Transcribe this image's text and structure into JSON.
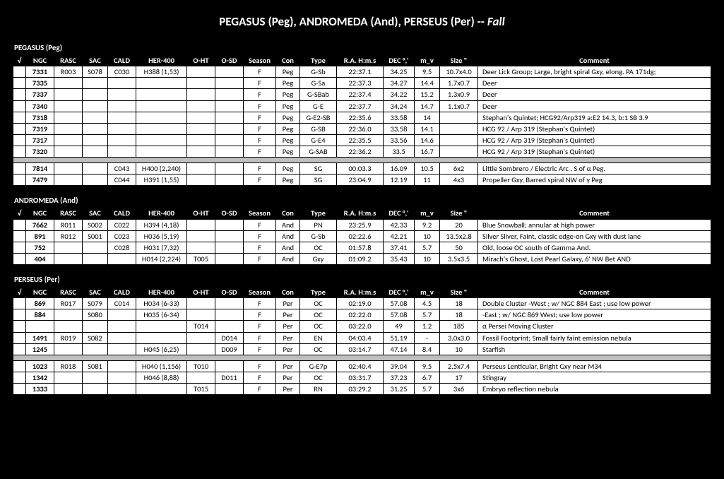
{
  "title_main": "PEGASUS (Peg),  ANDROMEDA (And), PERSEUS (Per) -- ",
  "title_suffix": "Fall",
  "headers": {
    "chk": "√",
    "ngc": "NGC",
    "rasc": "RASC",
    "sac": "SAC",
    "cald": "CALD",
    "her": "HER-400",
    "oht": "O-HT",
    "osd": "O-SD",
    "seas": "Season",
    "con": "Con",
    "type": "Type",
    "ra": "R.A. H:m.s",
    "dec": "DEC °,'",
    "mv": "m_v",
    "size": "Size \"",
    "comm": "Comment"
  },
  "sections": [
    {
      "label": "PEGASUS (Peg)",
      "rows": [
        {
          "ngc": "7331",
          "rasc": "R003",
          "sac": "S078",
          "cald": "C030",
          "her": "H388 (1,53)",
          "oht": "",
          "osd": "",
          "seas": "F",
          "con": "Peg",
          "type": "G-Sb",
          "ra": "22:37.1",
          "dec": "34.25",
          "mv": "9.5",
          "size": "10.7x4.0",
          "comm": "Deer Lick Group; Large, bright spiral Gxy, elong. PA 171dg;"
        },
        {
          "ngc": "7335",
          "rasc": "",
          "sac": "",
          "cald": "",
          "her": "",
          "oht": "",
          "osd": "",
          "seas": "F",
          "con": "Peg",
          "type": "G-Sa",
          "ra": "22:37.3",
          "dec": "34.27",
          "mv": "14.4",
          "size": "1.7x0.7",
          "comm": "       Deer"
        },
        {
          "ngc": "7337",
          "rasc": "",
          "sac": "",
          "cald": "",
          "her": "",
          "oht": "",
          "osd": "",
          "seas": "F",
          "con": "Peg",
          "type": "G-SBab",
          "ra": "22:37.4",
          "dec": "34.22",
          "mv": "15.2",
          "size": "1.3x0.9",
          "comm": "       Deer"
        },
        {
          "ngc": "7340",
          "rasc": "",
          "sac": "",
          "cald": "",
          "her": "",
          "oht": "",
          "osd": "",
          "seas": "F",
          "con": "Peg",
          "type": "G-E",
          "ra": "22:37.7",
          "dec": "34.24",
          "mv": "14.7",
          "size": "1.1x0.7",
          "comm": "       Deer"
        },
        {
          "ngc": "7318",
          "rasc": "",
          "sac": "",
          "cald": "",
          "her": "",
          "oht": "",
          "osd": "",
          "seas": "F",
          "con": "Peg",
          "type": "G-E2-SB",
          "ra": "22:35.6",
          "dec": "33.58",
          "mv": "14",
          "size": "",
          "comm": "Stephan's Quintet; HCG92/Arp319  a:E2 14.3, b:1 SB 3.9"
        },
        {
          "ngc": "7319",
          "rasc": "",
          "sac": "",
          "cald": "",
          "her": "",
          "oht": "",
          "osd": "",
          "seas": "F",
          "con": "Peg",
          "type": "G-SB",
          "ra": "22:36.0",
          "dec": "33.58",
          "mv": "14.1",
          "size": "",
          "comm": "       HCG 92 / Arp 319 (Stephan's Quintet)"
        },
        {
          "ngc": "7317",
          "rasc": "",
          "sac": "",
          "cald": "",
          "her": "",
          "oht": "",
          "osd": "",
          "seas": "F",
          "con": "Peg",
          "type": "G-E4",
          "ra": "22:35.5",
          "dec": "33.56",
          "mv": "14.6",
          "size": "",
          "comm": "       HCG 92 / Arp 319 (Stephan's Quintet)"
        },
        {
          "ngc": "7320",
          "rasc": "",
          "sac": "",
          "cald": "",
          "her": "",
          "oht": "",
          "osd": "",
          "seas": "F",
          "con": "Peg",
          "type": "G-SAB",
          "ra": "22:36.2",
          "dec": "33.5",
          "mv": "16.7",
          "size": "",
          "comm": "       HCG 92 / Arp 319 (Stephan's Quintet)"
        },
        {
          "spacer": true
        },
        {
          "ngc": "7814",
          "rasc": "",
          "sac": "",
          "cald": "C043",
          "her": "H400 (2,240)",
          "oht": "",
          "osd": "",
          "seas": "F",
          "con": "Peg",
          "type": "SG",
          "ra": "00:03.3",
          "dec": "16.09",
          "mv": "10.5",
          "size": "6x2",
          "comm": "Little Sombrero / Electric Arc , S of α Peg."
        },
        {
          "ngc": "7479",
          "rasc": "",
          "sac": "",
          "cald": "C044",
          "her": "H391 (1,55)",
          "oht": "",
          "osd": "",
          "seas": "F",
          "con": "Peg",
          "type": "SG",
          "ra": "23:04.9",
          "dec": "12.19",
          "mv": "11",
          "size": "4x3",
          "comm": "Propeller Gxy, Barred spiral NW of γ Peg"
        }
      ]
    },
    {
      "label": "ANDROMEDA (And)",
      "rows": [
        {
          "ngc": "7662",
          "rasc": "R011",
          "sac": "S002",
          "cald": "C022",
          "her": "H394 (4,18)",
          "oht": "",
          "osd": "",
          "seas": "F",
          "con": "And",
          "type": "PN",
          "ra": "23:25.9",
          "dec": "42.33",
          "mv": "9.2",
          "size": "20",
          "comm": "Blue Snowball; annular at high power"
        },
        {
          "ngc": "891",
          "rasc": "R012",
          "sac": "S001",
          "cald": "C023",
          "her": "H036 (5,19)",
          "oht": "",
          "osd": "",
          "seas": "F",
          "con": "And",
          "type": "G-Sb",
          "ra": "02:22.6",
          "dec": "42.21",
          "mv": "10",
          "size": "13.5x2.8",
          "comm": "Silver Sliver, Faint, classic edge-on Gxy with dust lane"
        },
        {
          "ngc": "752",
          "rasc": "",
          "sac": "",
          "cald": "C028",
          "her": "H031 (7,32)",
          "oht": "",
          "osd": "",
          "seas": "F",
          "con": "And",
          "type": "OC",
          "ra": "01:57.8",
          "dec": "37.41",
          "mv": "5.7",
          "size": "50",
          "comm": "Old, loose OC south of Gamma And."
        },
        {
          "ngc": "404",
          "rasc": "",
          "sac": "",
          "cald": "",
          "her": "H014 (2,224)",
          "oht": "T005",
          "osd": "",
          "seas": "F",
          "con": "And",
          "type": "Gxy",
          "ra": "01:09.2",
          "dec": "35.43",
          "mv": "10",
          "size": "3.5x3.5",
          "comm": "Mirach's Ghost, Lost Pearl Galaxy, 6' NW Bet AND"
        }
      ]
    },
    {
      "label": "PERSEUS (Per)",
      "rows": [
        {
          "ngc": "869",
          "rasc": "R017",
          "sac": "S079",
          "cald": "C014",
          "her": "H034 (6-33)",
          "oht": "",
          "osd": "",
          "seas": "F",
          "con": "Per",
          "type": "OC",
          "ra": "02:19.0",
          "dec": "57.08",
          "mv": "4.5",
          "size": "18",
          "comm": "Double Cluster -West ;  w/ NGC 884 East  ;   use low power"
        },
        {
          "ngc": "884",
          "rasc": "",
          "sac": "S080",
          "cald": "",
          "her": "H035 (6-34)",
          "oht": "",
          "osd": "",
          "seas": "F",
          "con": "Per",
          "type": "OC",
          "ra": "02:22.0",
          "dec": "57.08",
          "mv": "5.7",
          "size": "18",
          "comm": "                         -East   ; w/ NGC 869  West; use low power"
        },
        {
          "ngc": "",
          "rasc": "",
          "sac": "",
          "cald": "",
          "her": "",
          "oht": "T014",
          "osd": "",
          "seas": "F",
          "con": "Per",
          "type": "OC",
          "ra": "03:22.0",
          "dec": "49",
          "mv": "1.2",
          "size": "185",
          "comm": "α Persei Moving Cluster"
        },
        {
          "ngc": "1491",
          "rasc": "R019",
          "sac": "S082",
          "cald": "",
          "her": "",
          "oht": "",
          "osd": "D014",
          "seas": "F",
          "con": "Per",
          "type": "EN",
          "ra": "04:03.4",
          "dec": "51.19",
          "mv": "-",
          "size": "3.0x3.0",
          "comm": "Fossil Footprint; Small fairly faint emission nebula"
        },
        {
          "ngc": "1245",
          "rasc": "",
          "sac": "",
          "cald": "",
          "her": "H045 (6,25)",
          "oht": "",
          "osd": "D009",
          "seas": "F",
          "con": "Per",
          "type": "OC",
          "ra": "03:14.7",
          "dec": "47.14",
          "mv": "8.4",
          "size": "10",
          "comm": "Starfish"
        },
        {
          "spacer": true
        },
        {
          "ngc": "1023",
          "rasc": "R018",
          "sac": "S081",
          "cald": "",
          "her": "H040 (1,156)",
          "oht": "T010",
          "osd": "",
          "seas": "F",
          "con": "Per",
          "type": "G-E7p",
          "ra": "02:40.4",
          "dec": "39.04",
          "mv": "9.5",
          "size": "2.5x7.4",
          "comm": "Perseus Lenticular, Bright Gxy near M34"
        },
        {
          "ngc": "1342",
          "rasc": "",
          "sac": "",
          "cald": "",
          "her": "H046 (8,88)",
          "oht": "",
          "osd": "D011",
          "seas": "F",
          "con": "Per",
          "type": "OC",
          "ra": "03:31.7",
          "dec": "37.23",
          "mv": "6.7",
          "size": "17",
          "comm": "Stingray"
        },
        {
          "ngc": "1333",
          "rasc": "",
          "sac": "",
          "cald": "",
          "her": "",
          "oht": "T015",
          "osd": "",
          "seas": "F",
          "con": "Per",
          "type": "RN",
          "ra": "03:29.2",
          "dec": "31.25",
          "mv": "5.7",
          "size": "3x6",
          "comm": "Embryo reflection nebula"
        }
      ]
    }
  ]
}
